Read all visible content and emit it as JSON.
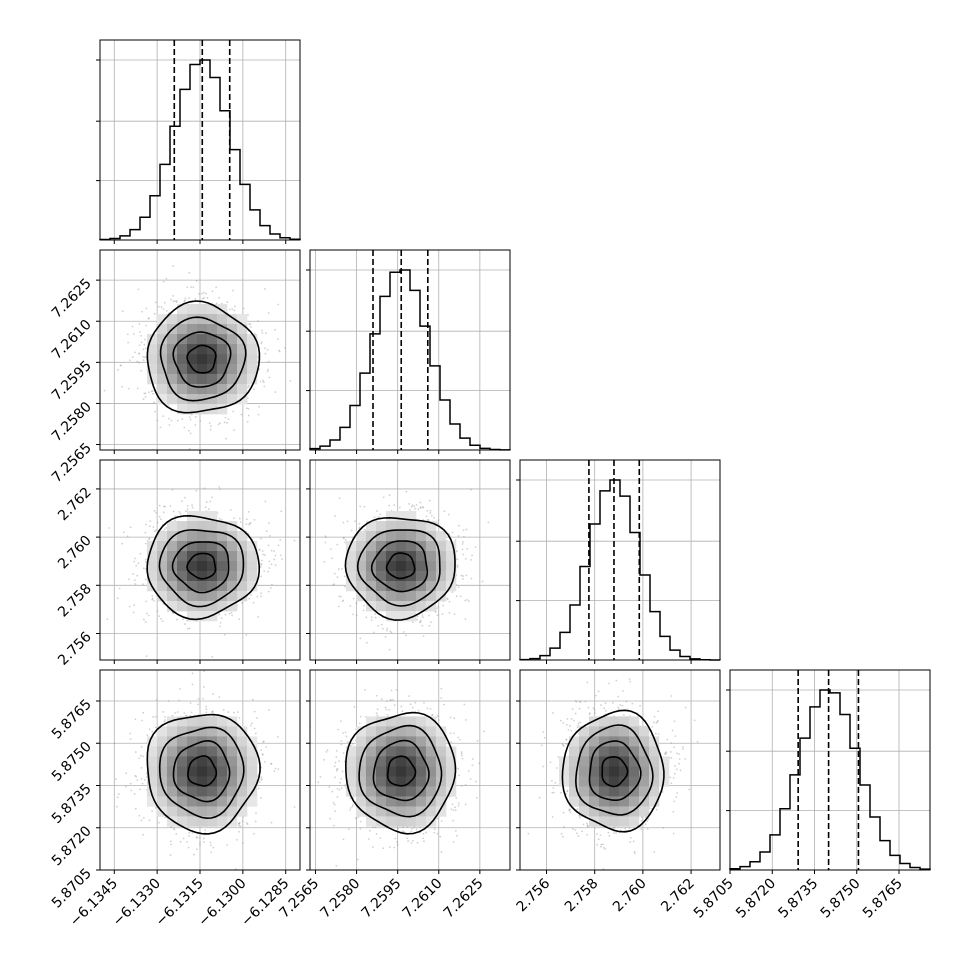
{
  "chart_data": {
    "type": "corner",
    "grid": true,
    "parameters": [
      {
        "range": [
          -6.135,
          -6.128
        ],
        "ticks": [
          -6.1345,
          -6.133,
          -6.1315,
          -6.13,
          -6.1285
        ],
        "tick_labels": [
          "−6.1345",
          "−6.1330",
          "−6.1315",
          "−6.1300",
          "−6.1285"
        ],
        "quantiles": [
          -6.1324,
          -6.13142,
          -6.13046
        ],
        "mean": -6.13143,
        "sd": 0.00098
      },
      {
        "range": [
          7.2563,
          7.2636
        ],
        "ticks": [
          7.2565,
          7.258,
          7.2595,
          7.261,
          7.2625
        ],
        "tick_labels": [
          "7.2565",
          "7.2580",
          "7.2595",
          "7.2610",
          "7.2625"
        ],
        "quantiles": [
          7.2586,
          7.25963,
          7.2606
        ],
        "mean": 7.25962,
        "sd": 0.001
      },
      {
        "range": [
          2.7549,
          2.7632
        ],
        "ticks": [
          2.756,
          2.758,
          2.76,
          2.762
        ],
        "tick_labels": [
          "2.756",
          "2.758",
          "2.760",
          "2.762"
        ],
        "quantiles": [
          2.75776,
          2.7588,
          2.75985
        ],
        "mean": 2.7588,
        "sd": 0.00105
      },
      {
        "range": [
          5.8705,
          5.8776
        ],
        "ticks": [
          5.8705,
          5.872,
          5.8735,
          5.875,
          5.8765
        ],
        "tick_labels": [
          "5.8705",
          "5.8720",
          "5.8735",
          "5.8750",
          "5.8765"
        ],
        "quantiles": [
          5.87292,
          5.874,
          5.87506
        ],
        "mean": 5.874,
        "sd": 0.00105
      }
    ]
  }
}
